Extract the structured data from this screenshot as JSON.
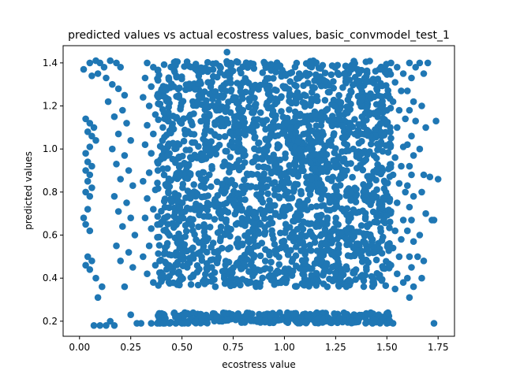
{
  "chart_data": {
    "type": "scatter",
    "title": "predicted values vs actual ecostress values, basic_convmodel_test_1",
    "xlabel": "ecostress value",
    "ylabel": "predicted values",
    "xlim": [
      -0.08,
      1.83
    ],
    "ylim": [
      0.13,
      1.48
    ],
    "xticks": [
      0.0,
      0.25,
      0.5,
      0.75,
      1.0,
      1.25,
      1.5,
      1.75
    ],
    "xtick_labels": [
      "0.00",
      "0.25",
      "0.50",
      "0.75",
      "1.00",
      "1.25",
      "1.50",
      "1.75"
    ],
    "yticks": [
      0.2,
      0.4,
      0.6,
      0.8,
      1.0,
      1.2,
      1.4
    ],
    "ytick_labels": [
      "0.2",
      "0.4",
      "0.6",
      "0.8",
      "1.0",
      "1.2",
      "1.4"
    ],
    "grid": false,
    "marker_color": "#1f77b4",
    "series": [
      {
        "points": [
          [
            0.02,
            1.37
          ],
          [
            0.05,
            1.4
          ],
          [
            0.08,
            1.41
          ],
          [
            0.1,
            1.4
          ],
          [
            0.12,
            1.38
          ],
          [
            0.06,
            1.34
          ],
          [
            0.09,
            1.35
          ],
          [
            0.13,
            1.33
          ],
          [
            0.03,
            1.14
          ],
          [
            0.05,
            1.12
          ],
          [
            0.07,
            1.1
          ],
          [
            0.04,
            1.08
          ],
          [
            0.06,
            1.06
          ],
          [
            0.08,
            1.04
          ],
          [
            0.05,
            1.01
          ],
          [
            0.03,
            0.98
          ],
          [
            0.04,
            0.94
          ],
          [
            0.06,
            0.92
          ],
          [
            0.03,
            0.9
          ],
          [
            0.05,
            0.88
          ],
          [
            0.04,
            0.85
          ],
          [
            0.06,
            0.82
          ],
          [
            0.03,
            0.8
          ],
          [
            0.05,
            0.78
          ],
          [
            0.04,
            0.72
          ],
          [
            0.02,
            0.68
          ],
          [
            0.03,
            0.65
          ],
          [
            0.05,
            0.62
          ],
          [
            0.04,
            0.5
          ],
          [
            0.06,
            0.48
          ],
          [
            0.03,
            0.46
          ],
          [
            0.05,
            0.44
          ],
          [
            0.08,
            0.4
          ],
          [
            0.11,
            0.36
          ],
          [
            0.09,
            0.31
          ],
          [
            0.15,
            0.2
          ],
          [
            0.07,
            0.18
          ],
          [
            0.1,
            0.18
          ],
          [
            0.13,
            0.18
          ],
          [
            0.17,
            0.18
          ],
          [
            0.15,
            1.41
          ],
          [
            0.18,
            1.4
          ],
          [
            0.2,
            1.38
          ],
          [
            0.16,
            1.3
          ],
          [
            0.19,
            1.28
          ],
          [
            0.22,
            1.25
          ],
          [
            0.14,
            1.22
          ],
          [
            0.21,
            1.18
          ],
          [
            0.17,
            1.15
          ],
          [
            0.23,
            1.12
          ],
          [
            0.19,
            1.07
          ],
          [
            0.25,
            1.04
          ],
          [
            0.16,
            1.0
          ],
          [
            0.22,
            0.97
          ],
          [
            0.18,
            0.93
          ],
          [
            0.24,
            0.9
          ],
          [
            0.2,
            0.86
          ],
          [
            0.26,
            0.83
          ],
          [
            0.17,
            0.78
          ],
          [
            0.23,
            0.75
          ],
          [
            0.19,
            0.71
          ],
          [
            0.25,
            0.68
          ],
          [
            0.21,
            0.64
          ],
          [
            0.27,
            0.6
          ],
          [
            0.18,
            0.55
          ],
          [
            0.24,
            0.52
          ],
          [
            0.2,
            0.48
          ],
          [
            0.26,
            0.45
          ],
          [
            0.22,
            0.36
          ],
          [
            0.25,
            0.23
          ],
          [
            0.28,
            0.19
          ],
          [
            0.3,
            0.19
          ],
          [
            0.33,
            1.4
          ],
          [
            0.36,
            1.38
          ],
          [
            0.32,
            1.33
          ],
          [
            0.35,
            1.29
          ],
          [
            0.31,
            1.24
          ],
          [
            0.34,
            1.2
          ],
          [
            0.37,
            1.16
          ],
          [
            0.33,
            1.11
          ],
          [
            0.36,
            1.07
          ],
          [
            0.32,
            1.02
          ],
          [
            0.35,
            0.98
          ],
          [
            0.38,
            0.94
          ],
          [
            0.34,
            0.89
          ],
          [
            0.31,
            0.85
          ],
          [
            0.37,
            0.81
          ],
          [
            0.33,
            0.77
          ],
          [
            0.36,
            0.72
          ],
          [
            0.32,
            0.68
          ],
          [
            0.35,
            0.63
          ],
          [
            0.38,
            0.59
          ],
          [
            0.34,
            0.55
          ],
          [
            0.31,
            0.5
          ],
          [
            0.37,
            0.46
          ],
          [
            0.33,
            0.42
          ],
          [
            0.36,
            0.38
          ],
          [
            0.35,
            0.19
          ],
          [
            0.38,
            0.19
          ],
          [
            0.41,
            0.19
          ],
          [
            0.44,
            0.19
          ],
          [
            0.47,
            0.19
          ],
          [
            0.5,
            0.19
          ],
          [
            0.53,
            0.19
          ],
          [
            1.52,
            1.4
          ],
          [
            1.55,
            1.38
          ],
          [
            1.58,
            1.35
          ],
          [
            1.54,
            1.31
          ],
          [
            1.57,
            1.27
          ],
          [
            1.53,
            1.22
          ],
          [
            1.56,
            1.18
          ],
          [
            1.59,
            1.14
          ],
          [
            1.55,
            1.1
          ],
          [
            1.52,
            1.05
          ],
          [
            1.58,
            1.01
          ],
          [
            1.54,
            0.96
          ],
          [
            1.57,
            0.92
          ],
          [
            1.53,
            0.88
          ],
          [
            1.56,
            0.84
          ],
          [
            1.59,
            0.8
          ],
          [
            1.55,
            0.75
          ],
          [
            1.52,
            0.71
          ],
          [
            1.58,
            0.67
          ],
          [
            1.54,
            0.62
          ],
          [
            1.57,
            0.58
          ],
          [
            1.53,
            0.54
          ],
          [
            1.56,
            0.5
          ],
          [
            1.52,
            0.46
          ],
          [
            1.55,
            0.42
          ],
          [
            1.58,
            0.38
          ],
          [
            1.54,
            0.35
          ],
          [
            1.48,
            0.22
          ],
          [
            1.5,
            0.19
          ],
          [
            1.53,
            0.19
          ],
          [
            1.46,
            0.23
          ],
          [
            1.43,
            0.19
          ],
          [
            1.61,
            1.4
          ],
          [
            1.64,
            1.38
          ],
          [
            1.62,
            1.33
          ],
          [
            1.6,
            1.27
          ],
          [
            1.63,
            1.22
          ],
          [
            1.61,
            1.18
          ],
          [
            1.64,
            1.13
          ],
          [
            1.62,
            1.06
          ],
          [
            1.6,
            1.02
          ],
          [
            1.63,
            0.97
          ],
          [
            1.61,
            0.92
          ],
          [
            1.62,
            0.88
          ],
          [
            1.6,
            0.83
          ],
          [
            1.63,
            0.78
          ],
          [
            1.61,
            0.73
          ],
          [
            1.62,
            0.67
          ],
          [
            1.6,
            0.62
          ],
          [
            1.63,
            0.57
          ],
          [
            1.61,
            0.5
          ],
          [
            1.62,
            0.45
          ],
          [
            1.6,
            0.4
          ],
          [
            1.63,
            0.36
          ],
          [
            1.61,
            0.31
          ],
          [
            1.66,
            1.4
          ],
          [
            1.7,
            1.4
          ],
          [
            1.68,
            1.35
          ],
          [
            1.67,
            1.2
          ],
          [
            1.69,
            1.1
          ],
          [
            1.66,
            1.0
          ],
          [
            1.68,
            0.88
          ],
          [
            1.67,
            0.8
          ],
          [
            1.69,
            0.7
          ],
          [
            1.66,
            0.6
          ],
          [
            1.68,
            0.48
          ],
          [
            1.67,
            0.4
          ],
          [
            1.71,
            0.87
          ],
          [
            1.73,
            0.67
          ],
          [
            1.74,
            1.13
          ],
          [
            1.75,
            0.86
          ],
          [
            1.73,
            0.19
          ],
          [
            0.72,
            1.45
          ],
          [
            1.72,
            0.67
          ],
          [
            1.65,
            0.5
          ]
        ]
      }
    ]
  }
}
